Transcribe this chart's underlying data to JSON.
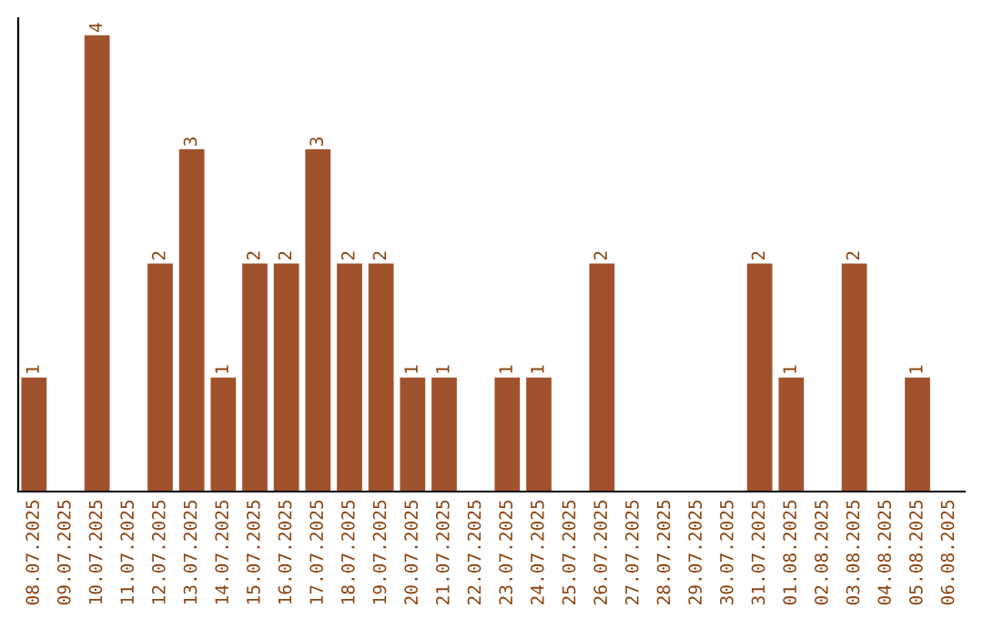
{
  "chart_data": {
    "type": "bar",
    "categories": [
      "08.07.2025",
      "09.07.2025",
      "10.07.2025",
      "11.07.2025",
      "12.07.2025",
      "13.07.2025",
      "14.07.2025",
      "15.07.2025",
      "16.07.2025",
      "17.07.2025",
      "18.07.2025",
      "19.07.2025",
      "20.07.2025",
      "21.07.2025",
      "22.07.2025",
      "23.07.2025",
      "24.07.2025",
      "25.07.2025",
      "26.07.2025",
      "27.07.2025",
      "28.07.2025",
      "29.07.2025",
      "30.07.2025",
      "31.07.2025",
      "01.08.2025",
      "02.08.2025",
      "03.08.2025",
      "04.08.2025",
      "05.08.2025",
      "06.08.2025"
    ],
    "values": [
      1,
      0,
      4,
      0,
      2,
      3,
      1,
      2,
      2,
      3,
      2,
      2,
      1,
      1,
      0,
      1,
      1,
      0,
      2,
      0,
      0,
      0,
      0,
      2,
      1,
      0,
      2,
      0,
      1,
      0
    ],
    "value_labels": [
      "1",
      null,
      "4",
      null,
      "2",
      "3",
      "1",
      "2",
      "2",
      "3",
      "2",
      "2",
      "1",
      "1",
      null,
      "1",
      "1",
      null,
      "2",
      null,
      null,
      null,
      null,
      "2",
      "1",
      null,
      "2",
      null,
      "1",
      null
    ],
    "color": "#a0522d",
    "ylim": [
      0,
      4.15
    ],
    "tick_labels": "x",
    "grid": false,
    "legend": false
  }
}
